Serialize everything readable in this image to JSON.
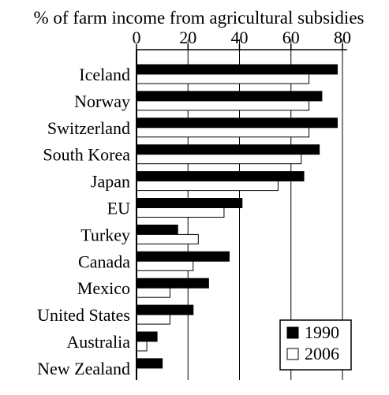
{
  "chart_data": {
    "type": "bar",
    "orientation": "horizontal",
    "title": "% of farm income from agricultural subsidies",
    "xlabel": "",
    "ylabel": "",
    "xlim": [
      0,
      80
    ],
    "x_ticks": [
      "0",
      "20",
      "40",
      "60",
      "80"
    ],
    "x_axis_position": "top",
    "grid": true,
    "legend_position": "bottom-right",
    "categories": [
      "Iceland",
      "Norway",
      "Switzerland",
      "South Korea",
      "Japan",
      "EU",
      "Turkey",
      "Canada",
      "Mexico",
      "United States",
      "Australia",
      "New Zealand"
    ],
    "series": [
      {
        "name": "1990",
        "color": "#000000",
        "values": [
          78,
          72,
          78,
          71,
          65,
          41,
          16,
          36,
          28,
          22,
          8,
          10
        ]
      },
      {
        "name": "2006",
        "color": "#ffffff",
        "values": [
          67,
          67,
          67,
          64,
          55,
          34,
          24,
          22,
          13,
          13,
          4,
          null
        ]
      }
    ]
  }
}
